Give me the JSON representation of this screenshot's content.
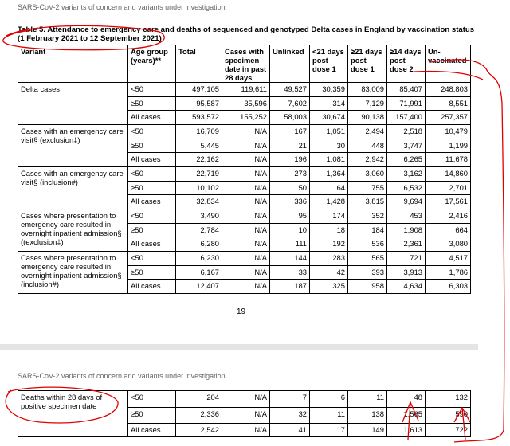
{
  "page_header": "SARS-CoV-2 variants of concern and variants under investigation",
  "title": [
    "Table 5. Attendance to emergency care and deaths of sequenced and genotyped Delta cases in England by vaccination status",
    "(1 February 2021 to 12 September 2021)"
  ],
  "table": {
    "columns": [
      "Variant",
      "Age group (years)**",
      "Total",
      "Cases with specimen date in past 28 days",
      "Unlinked",
      "<21 days post dose 1",
      "≥21 days post dose 1",
      "≥14 days post dose 2",
      "Un-vaccinated"
    ],
    "groups": [
      {
        "label": "Delta cases",
        "rows": [
          {
            "age": "<50",
            "values": [
              "497,105",
              "119,611",
              "49,527",
              "30,359",
              "83,009",
              "85,407",
              "248,803"
            ]
          },
          {
            "age": "≥50",
            "values": [
              "95,587",
              "35,596",
              "7,602",
              "314",
              "7,129",
              "71,991",
              "8,551"
            ]
          },
          {
            "age": "All cases",
            "values": [
              "593,572",
              "155,252",
              "58,003",
              "30,674",
              "90,138",
              "157,400",
              "257,357"
            ]
          }
        ]
      },
      {
        "label": "Cases with an emergency care visit§ (exclusion‡)",
        "rows": [
          {
            "age": "<50",
            "values": [
              "16,709",
              "N/A",
              "167",
              "1,051",
              "2,494",
              "2,518",
              "10,479"
            ]
          },
          {
            "age": "≥50",
            "values": [
              "5,445",
              "N/A",
              "21",
              "30",
              "448",
              "3,747",
              "1,199"
            ]
          },
          {
            "age": "All cases",
            "values": [
              "22,162",
              "N/A",
              "196",
              "1,081",
              "2,942",
              "6,265",
              "11,678"
            ]
          }
        ]
      },
      {
        "label": "Cases with an emergency care visit§ (inclusion#)",
        "rows": [
          {
            "age": "<50",
            "values": [
              "22,719",
              "N/A",
              "273",
              "1,364",
              "3,060",
              "3,162",
              "14,860"
            ]
          },
          {
            "age": "≥50",
            "values": [
              "10,102",
              "N/A",
              "50",
              "64",
              "755",
              "6,532",
              "2,701"
            ]
          },
          {
            "age": "All cases",
            "values": [
              "32,834",
              "N/A",
              "336",
              "1,428",
              "3,815",
              "9,694",
              "17,561"
            ]
          }
        ]
      },
      {
        "label": "Cases where presentation to emergency care resulted in overnight inpatient admission§ ((exclusion‡)",
        "rows": [
          {
            "age": "<50",
            "values": [
              "3,490",
              "N/A",
              "95",
              "174",
              "352",
              "453",
              "2,416"
            ]
          },
          {
            "age": "≥50",
            "values": [
              "2,784",
              "N/A",
              "10",
              "18",
              "184",
              "1,908",
              "664"
            ]
          },
          {
            "age": "All cases",
            "values": [
              "6,280",
              "N/A",
              "111",
              "192",
              "536",
              "2,361",
              "3,080"
            ]
          }
        ]
      },
      {
        "label": "Cases where presentation to emergency care resulted in overnight inpatient admission§ (inclusion#)",
        "rows": [
          {
            "age": "<50",
            "values": [
              "6,230",
              "N/A",
              "144",
              "283",
              "565",
              "721",
              "4,517"
            ]
          },
          {
            "age": "≥50",
            "values": [
              "6,167",
              "N/A",
              "33",
              "42",
              "393",
              "3,913",
              "1,786"
            ]
          },
          {
            "age": "All cases",
            "values": [
              "12,407",
              "N/A",
              "187",
              "325",
              "958",
              "4,634",
              "6,303"
            ]
          }
        ]
      }
    ]
  },
  "page_number": "19",
  "page2_header": "SARS-CoV-2 variants of concern and variants under investigation",
  "table2": {
    "groups": [
      {
        "label": "Deaths within 28 days of positive specimen date",
        "rows": [
          {
            "age": "<50",
            "values": [
              "204",
              "N/A",
              "7",
              "6",
              "11",
              "48",
              "132"
            ]
          },
          {
            "age": "≥50",
            "values": [
              "2,336",
              "N/A",
              "32",
              "11",
              "138",
              "1,565",
              "590"
            ]
          },
          {
            "age": "All cases",
            "values": [
              "2,542",
              "N/A",
              "41",
              "17",
              "149",
              "1,613",
              "722"
            ]
          }
        ]
      }
    ]
  }
}
